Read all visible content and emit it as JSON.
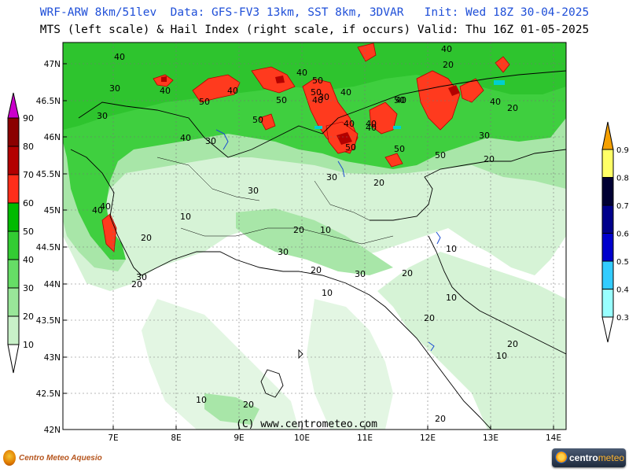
{
  "header": {
    "line1": "WRF-ARW 8km/51lev  Data: GFS-FV3 13km, SST 8km, 3DVAR   Init: Wed 18Z 30-04-2025",
    "line2": "MTS (left scale) & Hail Index (right scale, if occurs) Valid: Thu 16Z 01-05-2025"
  },
  "map": {
    "lat_labels": [
      "47N",
      "46.5N",
      "46N",
      "45.5N",
      "45N",
      "44.5N",
      "44N",
      "43.5N",
      "43N",
      "42.5N",
      "42N"
    ],
    "lon_labels": [
      "7E",
      "8E",
      "9E",
      "10E",
      "11E",
      "12E",
      "13E",
      "14E"
    ],
    "contour_labels": [
      "40",
      "30",
      "30",
      "40",
      "40",
      "50",
      "40",
      "50",
      "50",
      "50",
      "40",
      "40",
      "50",
      "40",
      "30",
      "40",
      "40",
      "20",
      "30",
      "40",
      "50",
      "50",
      "40",
      "30",
      "50",
      "40",
      "40",
      "40",
      "50",
      "30",
      "40",
      "20",
      "30",
      "20",
      "10",
      "20",
      "20",
      "10",
      "30",
      "30",
      "20",
      "20",
      "30",
      "20",
      "10",
      "10",
      "10",
      "20",
      "10",
      "20",
      "20",
      "10",
      "20",
      "20"
    ],
    "copyright": "(C) www.centrometeo.com"
  },
  "left_scale": {
    "labels": [
      "90",
      "80",
      "70",
      "60",
      "50",
      "40",
      "30",
      "20",
      "10"
    ],
    "colors": [
      "#cc00cc",
      "#8b0000",
      "#b30000",
      "#ff2e1a",
      "#00bb00",
      "#33cc33",
      "#66dd66",
      "#99e699",
      "#c8f0c8",
      "#ffffff"
    ]
  },
  "right_scale": {
    "labels": [
      "0.9",
      "0.8",
      "0.7",
      "0.6",
      "0.5",
      "0.4",
      "0.3"
    ],
    "colors": [
      "#f5a000",
      "#ffff66",
      "#000033",
      "#00008b",
      "#0000cd",
      "#33ccff",
      "#99ffff",
      "#ffffff"
    ]
  },
  "footer": {
    "left_brand": "Centro Meteo Aquesio",
    "right_brand_a": "centro",
    "right_brand_b": "meteo"
  }
}
